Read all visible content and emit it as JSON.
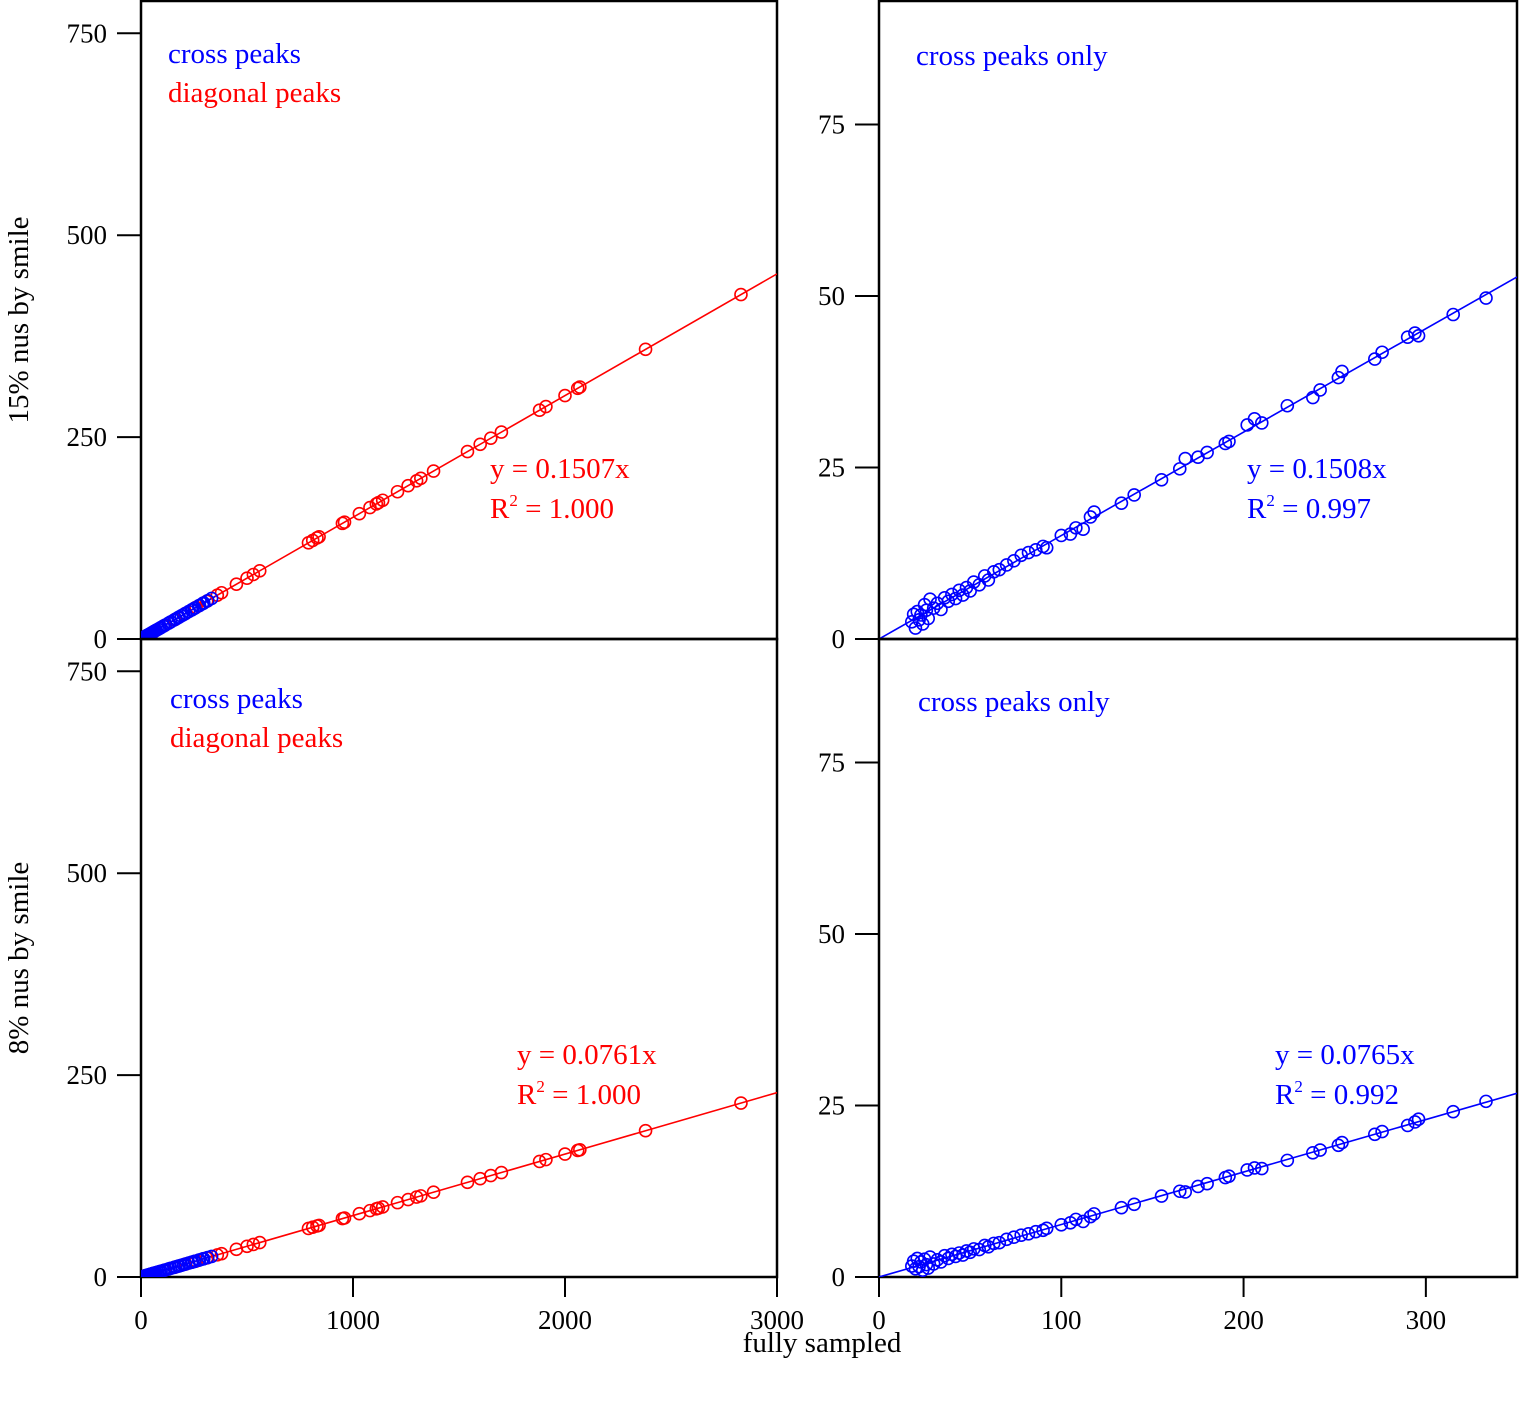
{
  "figure": {
    "xlabel": "fully sampled",
    "colors": {
      "cross": "#0000ff",
      "diagonal": "#ff0000",
      "axes": "#000000"
    }
  },
  "chart_data": [
    {
      "id": "top-left",
      "type": "scatter",
      "ylabel": "15% nus by smile",
      "xlim": [
        0,
        3000
      ],
      "ylim": [
        0,
        790
      ],
      "xticks": [],
      "yticks": [
        0,
        250,
        500,
        750
      ],
      "legend": [
        {
          "label": "cross peaks",
          "color": "#0000ff"
        },
        {
          "label": "diagonal peaks",
          "color": "#ff0000"
        }
      ],
      "legend_position": "top-left",
      "annotation": {
        "equation": "y = 0.1507x",
        "r2_prefix": "R",
        "r2_sup": "2",
        "r2_value": " = 1.000",
        "color": "#ff0000"
      },
      "fits": [
        {
          "name": "diagonal peaks fit",
          "slope": 0.1507,
          "x_range": [
            0,
            3000
          ],
          "color": "#ff0000"
        },
        {
          "name": "cross peaks fit",
          "slope": 0.1508,
          "x_range": [
            0,
            350
          ],
          "color": "#0000ff"
        }
      ],
      "series": [
        {
          "name": "diagonal peaks",
          "color": "#ff0000",
          "slope": 0.1507,
          "x": [
            20,
            60,
            110,
            160,
            210,
            260,
            310,
            360,
            380,
            450,
            500,
            530,
            560,
            790,
            810,
            830,
            840,
            950,
            960,
            1030,
            1080,
            1110,
            1120,
            1140,
            1210,
            1260,
            1300,
            1320,
            1380,
            1540,
            1600,
            1650,
            1700,
            1880,
            1910,
            2000,
            2060,
            2070,
            2380,
            2830
          ]
        },
        {
          "name": "cross peaks",
          "color": "#0000ff",
          "slope": 0.1508,
          "x": [
            18,
            22,
            25,
            28,
            32,
            36,
            40,
            45,
            50,
            55,
            60,
            66,
            72,
            80,
            88,
            95,
            105,
            115,
            130,
            140,
            155,
            165,
            175,
            180,
            190,
            200,
            210,
            225,
            238,
            242,
            252,
            254,
            272,
            276,
            290,
            294,
            296,
            315,
            333
          ]
        }
      ]
    },
    {
      "id": "top-right",
      "type": "scatter",
      "xlim": [
        0,
        350
      ],
      "ylim": [
        0,
        93
      ],
      "xticks": [],
      "yticks": [
        0,
        25,
        50,
        75
      ],
      "legend": [
        {
          "label": "cross peaks only",
          "color": "#0000ff"
        }
      ],
      "legend_position": "top-left",
      "annotation": {
        "equation": "y = 0.1508x",
        "r2_prefix": "R",
        "r2_sup": "2",
        "r2_value": " = 0.997",
        "color": "#0000ff"
      },
      "fits": [
        {
          "name": "cross peaks fit",
          "slope": 0.1508,
          "x_range": [
            0,
            350
          ],
          "color": "#0000ff"
        }
      ],
      "series": [
        {
          "name": "cross peaks",
          "color": "#0000ff",
          "slope": 0.1508,
          "x": [
            18,
            19,
            20,
            21,
            22,
            23,
            24,
            25,
            26,
            27,
            28,
            30,
            32,
            34,
            36,
            38,
            40,
            42,
            44,
            46,
            48,
            50,
            52,
            55,
            58,
            60,
            63,
            66,
            70,
            74,
            78,
            82,
            86,
            90,
            92,
            100,
            105,
            108,
            112,
            116,
            118,
            133,
            140,
            155,
            165,
            168,
            175,
            180,
            190,
            192,
            202,
            206,
            210,
            224,
            238,
            242,
            252,
            254,
            272,
            276,
            290,
            294,
            296,
            315,
            333
          ],
          "y": [
            2.5,
            3.6,
            1.6,
            4.0,
            2.8,
            3.5,
            2.2,
            5.0,
            4.2,
            3.0,
            5.8,
            4.5,
            5.2,
            4.3,
            6.0,
            5.5,
            6.5,
            5.9,
            7.1,
            6.4,
            7.5,
            7.0,
            8.3,
            7.9,
            9.2,
            8.6,
            9.8,
            10.1,
            10.8,
            11.4,
            12.2,
            12.6,
            13.0,
            13.5,
            13.3,
            15.1,
            15.3,
            16.2,
            16.0,
            17.8,
            18.5,
            19.8,
            21.0,
            23.2,
            24.8,
            26.3,
            26.5,
            27.2,
            28.5,
            28.8,
            31.2,
            32.1,
            31.5,
            34.0,
            35.2,
            36.3,
            38.1,
            39.0,
            40.8,
            41.8,
            44.0,
            44.6,
            44.2,
            47.3,
            49.7
          ]
        }
      ]
    },
    {
      "id": "bottom-left",
      "type": "scatter",
      "ylabel": "8% nus by smile",
      "xlim": [
        0,
        3000
      ],
      "ylim": [
        0,
        790
      ],
      "xticks": [
        0,
        1000,
        2000,
        3000
      ],
      "yticks": [
        0,
        250,
        500,
        750
      ],
      "legend": [
        {
          "label": "cross peaks",
          "color": "#0000ff"
        },
        {
          "label": "diagonal peaks",
          "color": "#ff0000"
        }
      ],
      "legend_position": "top-left",
      "annotation": {
        "equation": "y = 0.0761x",
        "r2_prefix": "R",
        "r2_sup": "2",
        "r2_value": " = 1.000",
        "color": "#ff0000"
      },
      "fits": [
        {
          "name": "diagonal peaks fit",
          "slope": 0.0761,
          "x_range": [
            0,
            3000
          ],
          "color": "#ff0000"
        },
        {
          "name": "cross peaks fit",
          "slope": 0.0765,
          "x_range": [
            0,
            350
          ],
          "color": "#0000ff"
        }
      ],
      "series": [
        {
          "name": "diagonal peaks",
          "color": "#ff0000",
          "slope": 0.0761,
          "x": [
            20,
            60,
            110,
            160,
            210,
            260,
            310,
            360,
            380,
            450,
            500,
            530,
            560,
            790,
            810,
            830,
            840,
            950,
            960,
            1030,
            1080,
            1110,
            1120,
            1140,
            1210,
            1260,
            1300,
            1320,
            1380,
            1540,
            1600,
            1650,
            1700,
            1880,
            1910,
            2000,
            2060,
            2070,
            2380,
            2830
          ]
        },
        {
          "name": "cross peaks",
          "color": "#0000ff",
          "slope": 0.0765,
          "x": [
            18,
            22,
            25,
            28,
            32,
            36,
            40,
            45,
            50,
            55,
            60,
            66,
            72,
            80,
            88,
            95,
            105,
            115,
            130,
            140,
            155,
            165,
            175,
            180,
            190,
            200,
            210,
            225,
            238,
            242,
            252,
            254,
            272,
            276,
            290,
            294,
            296,
            315,
            333
          ]
        }
      ]
    },
    {
      "id": "bottom-right",
      "type": "scatter",
      "xlim": [
        0,
        350
      ],
      "ylim": [
        0,
        93
      ],
      "xticks": [
        0,
        100,
        200,
        300
      ],
      "yticks": [
        0,
        25,
        50,
        75
      ],
      "legend": [
        {
          "label": "cross peaks only",
          "color": "#0000ff"
        }
      ],
      "legend_position": "top-left",
      "annotation": {
        "equation": "y = 0.0765x",
        "r2_prefix": "R",
        "r2_sup": "2",
        "r2_value": " = 0.992",
        "color": "#0000ff"
      },
      "fits": [
        {
          "name": "cross peaks fit",
          "slope": 0.0765,
          "x_range": [
            0,
            350
          ],
          "color": "#0000ff"
        }
      ],
      "series": [
        {
          "name": "cross peaks",
          "color": "#0000ff",
          "slope": 0.0765,
          "x": [
            18,
            19,
            20,
            21,
            22,
            23,
            24,
            25,
            26,
            27,
            28,
            30,
            32,
            34,
            36,
            38,
            40,
            42,
            44,
            46,
            48,
            50,
            52,
            55,
            58,
            60,
            63,
            66,
            70,
            74,
            78,
            82,
            86,
            90,
            92,
            100,
            105,
            108,
            112,
            116,
            118,
            133,
            140,
            155,
            165,
            168,
            175,
            180,
            190,
            192,
            202,
            206,
            210,
            224,
            238,
            242,
            252,
            254,
            272,
            276,
            290,
            294,
            296,
            315,
            333
          ],
          "y": [
            1.6,
            2.3,
            1.2,
            2.7,
            1.5,
            2.2,
            1.0,
            2.6,
            1.8,
            1.3,
            2.9,
            1.9,
            2.5,
            2.2,
            3.1,
            2.7,
            3.3,
            3.0,
            3.5,
            3.2,
            3.8,
            3.6,
            4.1,
            4.0,
            4.6,
            4.4,
            4.9,
            5.0,
            5.5,
            5.8,
            6.1,
            6.3,
            6.6,
            6.8,
            7.1,
            7.6,
            7.9,
            8.4,
            8.1,
            8.8,
            9.2,
            10.1,
            10.6,
            11.8,
            12.5,
            12.4,
            13.2,
            13.6,
            14.5,
            14.7,
            15.6,
            15.9,
            15.8,
            17.0,
            18.1,
            18.5,
            19.2,
            19.6,
            20.8,
            21.2,
            22.1,
            22.6,
            23.0,
            24.1,
            25.6
          ]
        }
      ]
    }
  ]
}
